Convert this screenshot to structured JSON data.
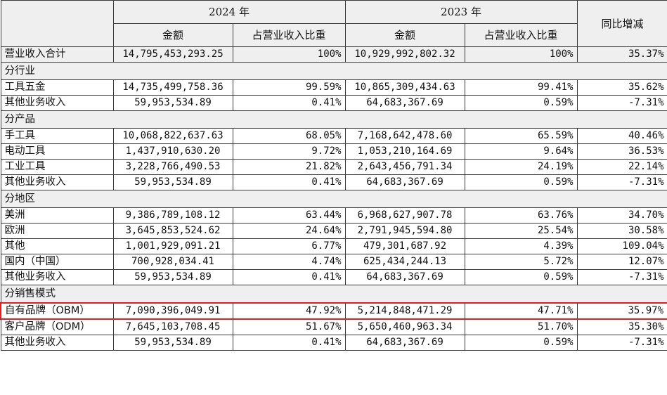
{
  "header": {
    "year_2024": "2024 年",
    "year_2023": "2023 年",
    "change": "同比增减",
    "amount": "金额",
    "share": "占营业收入比重"
  },
  "total": {
    "label": "营业收入合计",
    "amt_2024": "14,795,453,293.25",
    "pct_2024": "100%",
    "amt_2023": "10,929,992,802.32",
    "pct_2023": "100%",
    "change": "35.37%"
  },
  "sections": [
    {
      "title": "分行业",
      "rows": [
        {
          "label": "工具五金",
          "amt_2024": "14,735,499,758.36",
          "pct_2024": "99.59%",
          "amt_2023": "10,865,309,434.63",
          "pct_2023": "99.41%",
          "change": "35.62%"
        },
        {
          "label": "其他业务收入",
          "amt_2024": "59,953,534.89",
          "pct_2024": "0.41%",
          "amt_2023": "64,683,367.69",
          "pct_2023": "0.59%",
          "change": "-7.31%"
        }
      ]
    },
    {
      "title": "分产品",
      "rows": [
        {
          "label": "手工具",
          "amt_2024": "10,068,822,637.63",
          "pct_2024": "68.05%",
          "amt_2023": "7,168,642,478.60",
          "pct_2023": "65.59%",
          "change": "40.46%"
        },
        {
          "label": "电动工具",
          "amt_2024": "1,437,910,630.20",
          "pct_2024": "9.72%",
          "amt_2023": "1,053,210,164.69",
          "pct_2023": "9.64%",
          "change": "36.53%"
        },
        {
          "label": "工业工具",
          "amt_2024": "3,228,766,490.53",
          "pct_2024": "21.82%",
          "amt_2023": "2,643,456,791.34",
          "pct_2023": "24.19%",
          "change": "22.14%"
        },
        {
          "label": "其他业务收入",
          "amt_2024": "59,953,534.89",
          "pct_2024": "0.41%",
          "amt_2023": "64,683,367.69",
          "pct_2023": "0.59%",
          "change": "-7.31%"
        }
      ]
    },
    {
      "title": "分地区",
      "rows": [
        {
          "label": "美洲",
          "amt_2024": "9,386,789,108.12",
          "pct_2024": "63.44%",
          "amt_2023": "6,968,627,907.78",
          "pct_2023": "63.76%",
          "change": "34.70%"
        },
        {
          "label": "欧洲",
          "amt_2024": "3,645,853,524.62",
          "pct_2024": "24.64%",
          "amt_2023": "2,791,945,594.80",
          "pct_2023": "25.54%",
          "change": "30.58%"
        },
        {
          "label": "其他",
          "amt_2024": "1,001,929,091.21",
          "pct_2024": "6.77%",
          "amt_2023": "479,301,687.92",
          "pct_2023": "4.39%",
          "change": "109.04%"
        },
        {
          "label": "国内（中国）",
          "amt_2024": "700,928,034.41",
          "pct_2024": "4.74%",
          "amt_2023": "625,434,244.13",
          "pct_2023": "5.72%",
          "change": "12.07%"
        },
        {
          "label": "其他业务收入",
          "amt_2024": "59,953,534.89",
          "pct_2024": "0.41%",
          "amt_2023": "64,683,367.69",
          "pct_2023": "0.59%",
          "change": "-7.31%"
        }
      ]
    },
    {
      "title": "分销售模式",
      "rows": [
        {
          "label": "自有品牌（OBM）",
          "amt_2024": "7,090,396,049.91",
          "pct_2024": "47.92%",
          "amt_2023": "5,214,848,471.29",
          "pct_2023": "47.71%",
          "change": "35.97%",
          "highlighted": true
        },
        {
          "label": "客户品牌（ODM）",
          "amt_2024": "7,645,103,708.45",
          "pct_2024": "51.67%",
          "amt_2023": "5,650,460,963.34",
          "pct_2023": "51.70%",
          "change": "35.30%"
        },
        {
          "label": "其他业务收入",
          "amt_2024": "59,953,534.89",
          "pct_2024": "0.41%",
          "amt_2023": "64,683,367.69",
          "pct_2023": "0.59%",
          "change": "-7.31%"
        }
      ]
    }
  ],
  "colors": {
    "header_bg": "#efefef",
    "border": "#3a3a3a",
    "highlight": "#e02020"
  }
}
